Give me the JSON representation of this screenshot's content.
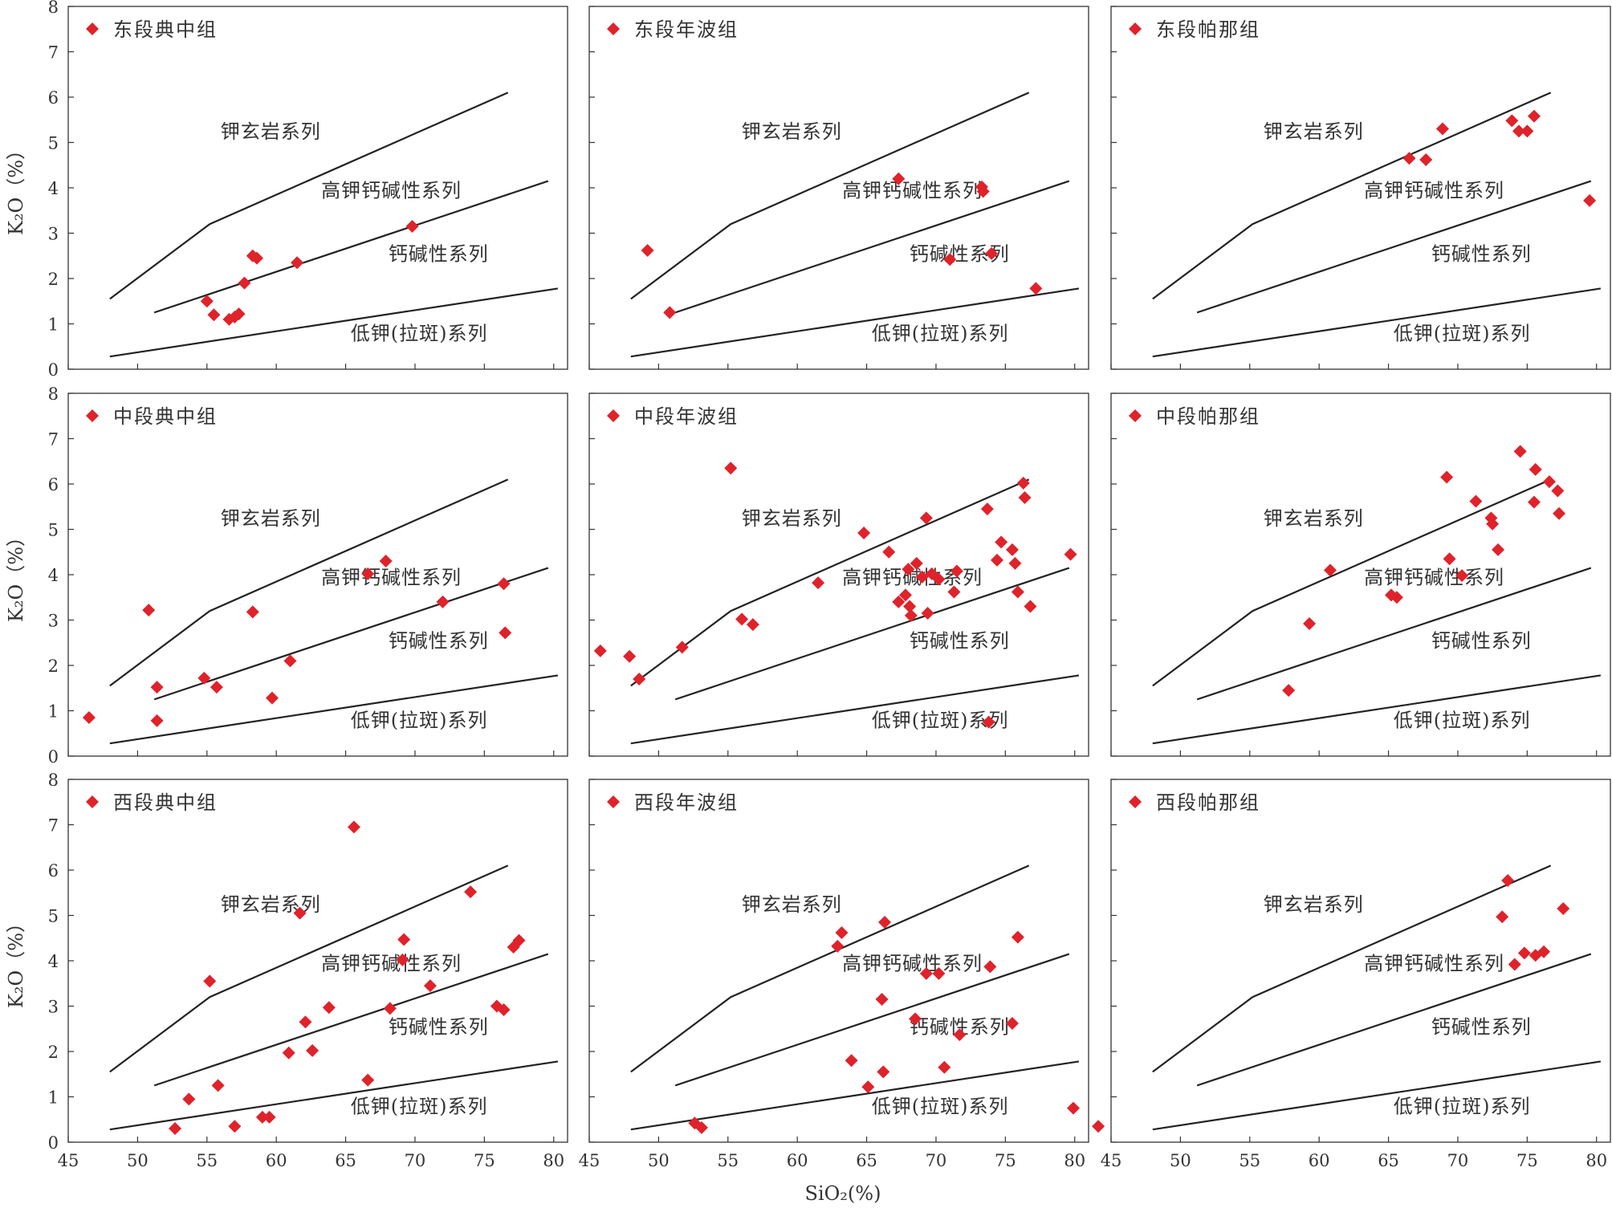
{
  "figure": {
    "x_axis_title": "SiO₂(%)",
    "y_axis_title": "K₂O（%）"
  },
  "x_ticks": [
    45,
    50,
    55,
    60,
    65,
    70,
    75,
    80
  ],
  "y_ticks": [
    0,
    1,
    2,
    3,
    4,
    5,
    6,
    7,
    8
  ],
  "boundary_lines": [
    [
      [
        48,
        1.55
      ],
      [
        55.2,
        3.2
      ],
      [
        76.7,
        6.1
      ]
    ],
    [
      [
        51.2,
        1.25
      ],
      [
        79.6,
        4.15
      ]
    ],
    [
      [
        48,
        0.28
      ],
      [
        80.3,
        1.78
      ]
    ]
  ],
  "field_labels": [
    {
      "text": "钾玄岩系列",
      "x": 59.6,
      "y": 5.1
    },
    {
      "text": "高钾钙碱性系列",
      "x": 68.3,
      "y": 3.8
    },
    {
      "text": "钙碱性系列",
      "x": 71.7,
      "y": 2.4
    },
    {
      "text": "低钾(拉斑)系列",
      "x": 70.3,
      "y": 0.65
    }
  ],
  "marker_color": "#e0222a",
  "chart_data": [
    {
      "type": "scatter",
      "legend": "东段典中组",
      "xlim": [
        45,
        81
      ],
      "ylim": [
        0,
        8
      ],
      "points": [
        [
          55.0,
          1.5
        ],
        [
          55.5,
          1.2
        ],
        [
          56.6,
          1.1
        ],
        [
          57.0,
          1.15
        ],
        [
          57.3,
          1.22
        ],
        [
          57.7,
          1.9
        ],
        [
          58.3,
          2.5
        ],
        [
          58.6,
          2.45
        ],
        [
          61.5,
          2.35
        ],
        [
          69.8,
          3.15
        ]
      ]
    },
    {
      "type": "scatter",
      "legend": "东段年波组",
      "xlim": [
        45,
        81
      ],
      "ylim": [
        0,
        8
      ],
      "points": [
        [
          49.2,
          2.62
        ],
        [
          50.8,
          1.25
        ],
        [
          67.3,
          4.2
        ],
        [
          73.3,
          4.02
        ],
        [
          73.4,
          3.92
        ],
        [
          71.0,
          2.42
        ],
        [
          74.0,
          2.55
        ],
        [
          77.2,
          1.78
        ]
      ]
    },
    {
      "type": "scatter",
      "legend": "东段帕那组",
      "xlim": [
        45,
        81
      ],
      "ylim": [
        0,
        8
      ],
      "points": [
        [
          66.5,
          4.65
        ],
        [
          67.7,
          4.62
        ],
        [
          68.9,
          5.3
        ],
        [
          73.9,
          5.48
        ],
        [
          74.4,
          5.25
        ],
        [
          75.0,
          5.25
        ],
        [
          75.5,
          5.58
        ],
        [
          79.5,
          3.72
        ]
      ]
    },
    {
      "type": "scatter",
      "legend": "中段典中组",
      "xlim": [
        45,
        81
      ],
      "ylim": [
        0,
        8
      ],
      "points": [
        [
          46.5,
          0.85
        ],
        [
          50.8,
          3.22
        ],
        [
          51.4,
          1.52
        ],
        [
          51.4,
          0.78
        ],
        [
          54.8,
          1.72
        ],
        [
          55.7,
          1.52
        ],
        [
          58.3,
          3.18
        ],
        [
          59.7,
          1.28
        ],
        [
          61.0,
          2.1
        ],
        [
          66.6,
          4.02
        ],
        [
          67.9,
          4.3
        ],
        [
          72.0,
          3.4
        ],
        [
          76.4,
          3.8
        ],
        [
          76.5,
          2.72
        ]
      ]
    },
    {
      "type": "scatter",
      "legend": "中段年波组",
      "xlim": [
        45,
        81
      ],
      "ylim": [
        0,
        8
      ],
      "points": [
        [
          45.8,
          2.32
        ],
        [
          47.9,
          2.2
        ],
        [
          48.6,
          1.7
        ],
        [
          51.7,
          2.4
        ],
        [
          55.2,
          6.35
        ],
        [
          56.0,
          3.02
        ],
        [
          56.8,
          2.9
        ],
        [
          61.5,
          3.82
        ],
        [
          64.8,
          4.92
        ],
        [
          66.6,
          4.5
        ],
        [
          67.3,
          3.4
        ],
        [
          67.8,
          3.55
        ],
        [
          68.0,
          4.12
        ],
        [
          68.1,
          3.3
        ],
        [
          68.2,
          3.1
        ],
        [
          68.6,
          4.25
        ],
        [
          69.0,
          3.95
        ],
        [
          69.3,
          5.25
        ],
        [
          69.4,
          3.15
        ],
        [
          69.7,
          4.02
        ],
        [
          70.2,
          3.9
        ],
        [
          71.3,
          3.62
        ],
        [
          71.5,
          4.08
        ],
        [
          73.7,
          5.45
        ],
        [
          73.8,
          0.75
        ],
        [
          74.4,
          4.32
        ],
        [
          74.7,
          4.72
        ],
        [
          75.5,
          4.55
        ],
        [
          75.7,
          4.25
        ],
        [
          75.9,
          3.62
        ],
        [
          76.3,
          6.02
        ],
        [
          76.4,
          5.7
        ],
        [
          76.8,
          3.3
        ],
        [
          79.7,
          4.45
        ]
      ]
    },
    {
      "type": "scatter",
      "legend": "中段帕那组",
      "xlim": [
        45,
        81
      ],
      "ylim": [
        0,
        8
      ],
      "points": [
        [
          57.8,
          1.45
        ],
        [
          59.3,
          2.92
        ],
        [
          60.8,
          4.1
        ],
        [
          65.2,
          3.55
        ],
        [
          65.6,
          3.5
        ],
        [
          69.2,
          6.15
        ],
        [
          69.4,
          4.35
        ],
        [
          70.3,
          3.98
        ],
        [
          71.3,
          5.62
        ],
        [
          72.4,
          5.25
        ],
        [
          72.5,
          5.12
        ],
        [
          72.9,
          4.55
        ],
        [
          74.5,
          6.72
        ],
        [
          75.5,
          5.6
        ],
        [
          75.6,
          6.32
        ],
        [
          76.6,
          6.05
        ],
        [
          77.2,
          5.85
        ],
        [
          77.3,
          5.35
        ]
      ]
    },
    {
      "type": "scatter",
      "legend": "西段典中组",
      "xlim": [
        45,
        81
      ],
      "ylim": [
        0,
        8
      ],
      "points": [
        [
          52.7,
          0.3
        ],
        [
          53.7,
          0.95
        ],
        [
          55.2,
          3.55
        ],
        [
          55.8,
          1.25
        ],
        [
          57.0,
          0.35
        ],
        [
          59.0,
          0.55
        ],
        [
          59.5,
          0.55
        ],
        [
          60.9,
          1.97
        ],
        [
          61.7,
          5.05
        ],
        [
          62.1,
          2.65
        ],
        [
          62.6,
          2.02
        ],
        [
          63.8,
          2.97
        ],
        [
          65.6,
          6.95
        ],
        [
          66.6,
          1.37
        ],
        [
          68.2,
          2.95
        ],
        [
          69.1,
          4.02
        ],
        [
          69.2,
          4.47
        ],
        [
          71.1,
          3.45
        ],
        [
          74.0,
          5.52
        ],
        [
          75.9,
          3.0
        ],
        [
          76.4,
          2.92
        ],
        [
          77.1,
          4.3
        ],
        [
          77.5,
          4.45
        ]
      ]
    },
    {
      "type": "scatter",
      "legend": "西段年波组",
      "xlim": [
        45,
        81
      ],
      "ylim": [
        0,
        8
      ],
      "points": [
        [
          52.6,
          0.42
        ],
        [
          53.1,
          0.32
        ],
        [
          62.9,
          4.32
        ],
        [
          63.2,
          4.62
        ],
        [
          63.9,
          1.8
        ],
        [
          65.1,
          1.22
        ],
        [
          66.1,
          3.15
        ],
        [
          66.2,
          1.55
        ],
        [
          66.3,
          4.85
        ],
        [
          68.5,
          2.72
        ],
        [
          69.3,
          3.72
        ],
        [
          70.2,
          3.72
        ],
        [
          70.6,
          1.65
        ],
        [
          71.7,
          2.37
        ],
        [
          73.9,
          3.87
        ],
        [
          75.5,
          2.62
        ],
        [
          75.9,
          4.52
        ],
        [
          79.9,
          0.75
        ],
        [
          81.7,
          0.35
        ]
      ]
    },
    {
      "type": "scatter",
      "legend": "西段帕那组",
      "xlim": [
        45,
        81
      ],
      "ylim": [
        0,
        8
      ],
      "points": [
        [
          73.2,
          4.97
        ],
        [
          73.6,
          5.77
        ],
        [
          74.1,
          3.92
        ],
        [
          74.8,
          4.17
        ],
        [
          75.6,
          4.12
        ],
        [
          76.2,
          4.2
        ],
        [
          77.6,
          5.15
        ]
      ]
    }
  ]
}
